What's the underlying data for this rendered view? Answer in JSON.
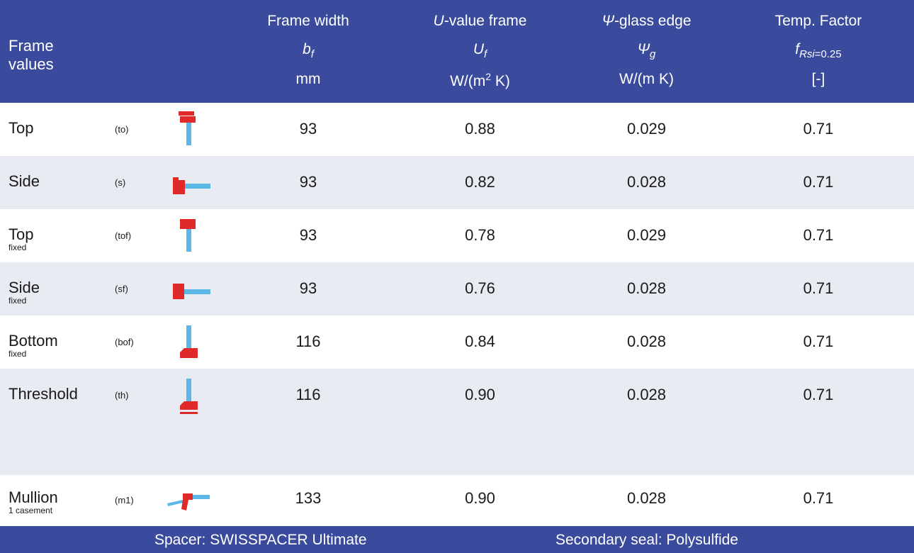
{
  "header": {
    "row_label_line1": "Frame",
    "row_label_line2": "values",
    "columns": [
      {
        "title": "Frame width",
        "symbol_main": "b",
        "symbol_sub": "f",
        "unit": "mm"
      },
      {
        "title_italic": "U",
        "title_rest": "-value frame",
        "symbol_main": "U",
        "symbol_sub": "f",
        "unit_pre": "W/(m",
        "unit_sup": "2",
        "unit_post": " K)"
      },
      {
        "title_italic": "Ψ",
        "title_rest": "-glass edge",
        "symbol_main": "Ψ",
        "symbol_sub": "g",
        "unit": "W/(m K)"
      },
      {
        "title": "Temp. Factor",
        "symbol_main": "f",
        "symbol_sub": "Rsi",
        "symbol_sub2": "=0.25",
        "unit": "[-]"
      }
    ]
  },
  "rows": [
    {
      "name": "Top",
      "note": "",
      "code": "(to)",
      "icon": "profile-top-icon",
      "width": "93",
      "uf": "0.88",
      "psi": "0.029",
      "frsi": "0.71"
    },
    {
      "name": "Side",
      "note": "",
      "code": "(s)",
      "icon": "profile-side-icon",
      "width": "93",
      "uf": "0.82",
      "psi": "0.028",
      "frsi": "0.71"
    },
    {
      "name": "Top",
      "note": "fixed",
      "code": "(tof)",
      "icon": "profile-top-fixed-icon",
      "width": "93",
      "uf": "0.78",
      "psi": "0.029",
      "frsi": "0.71"
    },
    {
      "name": "Side",
      "note": "fixed",
      "code": "(sf)",
      "icon": "profile-side-fixed-icon",
      "width": "93",
      "uf": "0.76",
      "psi": "0.028",
      "frsi": "0.71"
    },
    {
      "name": "Bottom",
      "note": "fixed",
      "code": "(bof)",
      "icon": "profile-bottom-fixed-icon",
      "width": "116",
      "uf": "0.84",
      "psi": "0.028",
      "frsi": "0.71"
    },
    {
      "name": "Threshold",
      "note": "",
      "code": "(th)",
      "icon": "profile-threshold-icon",
      "width": "116",
      "uf": "0.90",
      "psi": "0.028",
      "frsi": "0.71"
    },
    {
      "name": "Mullion",
      "note": "1 casement",
      "code": "(m1)",
      "icon": "profile-mullion-icon",
      "width": "133",
      "uf": "0.90",
      "psi": "0.028",
      "frsi": "0.71"
    }
  ],
  "footer": {
    "spacer": "Spacer: SWISSPACER Ultimate",
    "seal": "Secondary seal: Polysulfide"
  },
  "colors": {
    "header_bg": "#3a4a9c",
    "row_alt": "#e9ebf2",
    "frame_red": "#e02a2a",
    "glass_blue": "#5bb8e6"
  }
}
